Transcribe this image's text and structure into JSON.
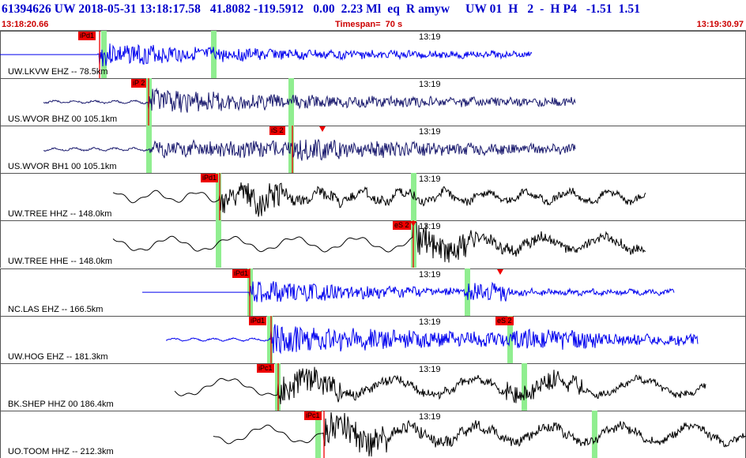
{
  "header": {
    "title": "61394626 UW 2018-05-31 13:18:17.58   41.8082 -119.5912   0.00  2.23 Ml  eq  R amyw     UW 01  H   2  -  H P4   -1.51  1.51",
    "start_time": "13:18:20.66",
    "timespan": "Timespan=  70 s",
    "end_time": "13:19:30.97"
  },
  "time_tick_label": "13:19",
  "colors": {
    "blue_trace": "#0000ee",
    "navy_trace": "#1a1a6e",
    "black_trace": "#000000",
    "pick_box": "#ee0000",
    "window_green": "#90ee90",
    "header_text": "#0000cc",
    "subheader_text": "#cc0000"
  },
  "traces": [
    {
      "label": "UW.LKVW EHZ -- 78.5km",
      "pick": "iPd1",
      "color": "blue",
      "distance_km": 78.5
    },
    {
      "label": "US.WVOR BHZ 00 105.1km",
      "pick": "iP 2",
      "color": "navy",
      "distance_km": 105.1
    },
    {
      "label": "US.WVOR BH1 00 105.1km",
      "pick": "iS 2",
      "color": "navy",
      "distance_km": 105.1
    },
    {
      "label": "UW.TREE HHZ -- 148.0km",
      "pick": "iPd1",
      "color": "black",
      "distance_km": 148.0
    },
    {
      "label": "UW.TREE HHE -- 148.0km",
      "pick": "eS 2",
      "color": "black",
      "distance_km": 148.0
    },
    {
      "label": "NC.LAS EHZ -- 166.5km",
      "pick": "iPd1",
      "color": "blue",
      "distance_km": 166.5
    },
    {
      "label": "UW.HOG EHZ -- 181.3km",
      "pick": "iPd1",
      "pick2": "eS 2",
      "color": "blue",
      "distance_km": 181.3
    },
    {
      "label": "BK.SHEP HHZ 00 186.4km",
      "pick": "iPc1",
      "color": "black",
      "distance_km": 186.4
    },
    {
      "label": "UO.TOOM HHZ -- 212.3km",
      "pick": "iPc1",
      "color": "black",
      "distance_km": 212.3
    }
  ]
}
